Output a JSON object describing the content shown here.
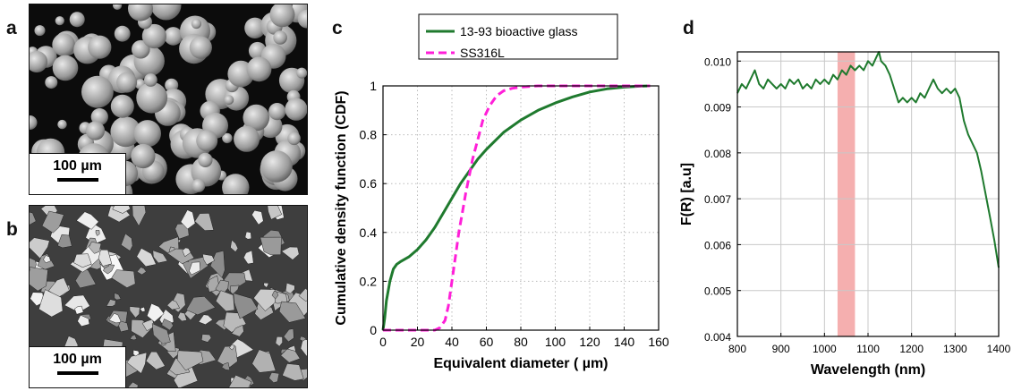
{
  "panels": {
    "a": {
      "letter": "a",
      "scale_bar": "100 µm"
    },
    "b": {
      "letter": "b",
      "scale_bar": "100 µm"
    },
    "c": {
      "letter": "c"
    },
    "d": {
      "letter": "d"
    }
  },
  "chart_data": [
    {
      "id": "c",
      "type": "line",
      "title": "",
      "xlabel": "Equivalent diameter ( µm)",
      "ylabel": "Cumulative density function (CDF)",
      "xlim": [
        0,
        160
      ],
      "ylim": [
        0,
        1
      ],
      "xticks": [
        0,
        20,
        40,
        60,
        80,
        100,
        120,
        140,
        160
      ],
      "yticks": [
        0,
        0.2,
        0.4,
        0.6,
        0.8,
        1
      ],
      "grid": true,
      "grid_style": "dotted",
      "legend": "top (outside plot)",
      "series": [
        {
          "name": "13-93 bioactive glass",
          "color": "#1f7a2e",
          "style": "solid",
          "x": [
            0,
            1,
            2,
            4,
            6,
            8,
            10,
            15,
            20,
            25,
            30,
            35,
            40,
            45,
            50,
            55,
            60,
            70,
            80,
            90,
            100,
            110,
            120,
            130,
            140,
            150,
            155
          ],
          "y": [
            0,
            0.05,
            0.12,
            0.2,
            0.25,
            0.27,
            0.28,
            0.3,
            0.33,
            0.37,
            0.42,
            0.48,
            0.54,
            0.6,
            0.65,
            0.7,
            0.74,
            0.81,
            0.86,
            0.9,
            0.93,
            0.955,
            0.975,
            0.988,
            0.995,
            0.999,
            1.0
          ]
        },
        {
          "name": "SS316L",
          "color": "#ff1fd8",
          "style": "dashed",
          "x": [
            0,
            10,
            20,
            30,
            33,
            36,
            38,
            40,
            42,
            44,
            46,
            48,
            50,
            52,
            55,
            58,
            62,
            66,
            70,
            75,
            80,
            90,
            100,
            120,
            140,
            155
          ],
          "y": [
            0,
            0,
            0,
            0,
            0.01,
            0.04,
            0.1,
            0.2,
            0.3,
            0.4,
            0.48,
            0.56,
            0.63,
            0.7,
            0.78,
            0.86,
            0.92,
            0.96,
            0.98,
            0.99,
            0.995,
            1.0,
            1.0,
            1.0,
            1.0,
            1.0
          ]
        }
      ]
    },
    {
      "id": "d",
      "type": "line",
      "title": "",
      "xlabel": "Wavelength (nm)",
      "ylabel": "F(R) [a.u]",
      "xlim": [
        800,
        1400
      ],
      "ylim": [
        0.004,
        0.0102
      ],
      "xticks": [
        800,
        900,
        1000,
        1100,
        1200,
        1300,
        1400
      ],
      "yticks": [
        0.004,
        0.005,
        0.006,
        0.007,
        0.008,
        0.009,
        0.01
      ],
      "grid": true,
      "highlight_band": {
        "x_from": 1030,
        "x_to": 1070,
        "color": "#f4a6a6"
      },
      "series": [
        {
          "name": "",
          "color": "#1f7a2e",
          "x": [
            800,
            810,
            820,
            830,
            840,
            850,
            860,
            870,
            880,
            890,
            900,
            910,
            920,
            930,
            940,
            950,
            960,
            970,
            980,
            990,
            1000,
            1010,
            1020,
            1030,
            1040,
            1050,
            1060,
            1070,
            1080,
            1090,
            1100,
            1110,
            1120,
            1125,
            1130,
            1140,
            1150,
            1160,
            1170,
            1180,
            1190,
            1200,
            1210,
            1220,
            1230,
            1240,
            1250,
            1260,
            1270,
            1280,
            1290,
            1300,
            1310,
            1320,
            1330,
            1340,
            1350,
            1360,
            1370,
            1380,
            1390,
            1400
          ],
          "y": [
            0.0093,
            0.0095,
            0.0094,
            0.0096,
            0.0098,
            0.0095,
            0.0094,
            0.0096,
            0.0095,
            0.0094,
            0.0095,
            0.0094,
            0.0096,
            0.0095,
            0.0096,
            0.0094,
            0.0095,
            0.0094,
            0.0096,
            0.0095,
            0.0096,
            0.0095,
            0.0097,
            0.0096,
            0.0098,
            0.0097,
            0.0099,
            0.0098,
            0.0099,
            0.0098,
            0.01,
            0.0099,
            0.0101,
            0.0102,
            0.01,
            0.0099,
            0.0097,
            0.0094,
            0.0091,
            0.0092,
            0.0091,
            0.0092,
            0.0091,
            0.0093,
            0.0092,
            0.0094,
            0.0096,
            0.0094,
            0.0093,
            0.0094,
            0.0093,
            0.0094,
            0.0092,
            0.0087,
            0.0084,
            0.0082,
            0.008,
            0.0076,
            0.0071,
            0.0066,
            0.0061,
            0.0055
          ]
        }
      ]
    }
  ]
}
